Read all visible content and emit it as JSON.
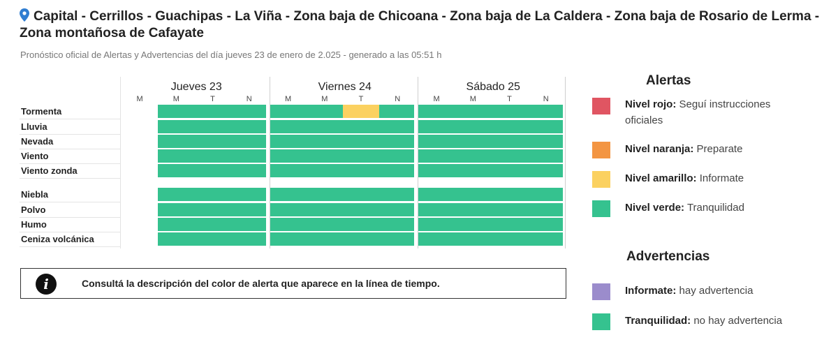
{
  "header": {
    "title": "Capital - Cerrillos - Guachipas - La Viña - Zona baja de Chicoana - Zona baja de La Caldera - Zona baja de Rosario de Lerma - Zona montañosa de Cafayate",
    "subtitle": "Pronóstico oficial de Alertas y Advertencias del día jueves 23 de enero de 2.025 - generado a las 05:51 h"
  },
  "timeline": {
    "days": [
      {
        "label": "Jueves 23",
        "slots": [
          "M",
          "M",
          "T",
          "N"
        ]
      },
      {
        "label": "Viernes 24",
        "slots": [
          "M",
          "M",
          "T",
          "N"
        ]
      },
      {
        "label": "Sábado 25",
        "slots": [
          "M",
          "M",
          "T",
          "N"
        ]
      }
    ],
    "alert_rows": [
      {
        "label": "Tormenta",
        "levels": [
          "none",
          "verde",
          "verde",
          "verde",
          "verde",
          "verde",
          "amarillo",
          "verde",
          "verde",
          "verde",
          "verde",
          "verde"
        ]
      },
      {
        "label": "Lluvia",
        "levels": [
          "none",
          "verde",
          "verde",
          "verde",
          "verde",
          "verde",
          "verde",
          "verde",
          "verde",
          "verde",
          "verde",
          "verde"
        ]
      },
      {
        "label": "Nevada",
        "levels": [
          "none",
          "verde",
          "verde",
          "verde",
          "verde",
          "verde",
          "verde",
          "verde",
          "verde",
          "verde",
          "verde",
          "verde"
        ]
      },
      {
        "label": "Viento",
        "levels": [
          "none",
          "verde",
          "verde",
          "verde",
          "verde",
          "verde",
          "verde",
          "verde",
          "verde",
          "verde",
          "verde",
          "verde"
        ]
      },
      {
        "label": "Viento zonda",
        "levels": [
          "none",
          "verde",
          "verde",
          "verde",
          "verde",
          "verde",
          "verde",
          "verde",
          "verde",
          "verde",
          "verde",
          "verde"
        ]
      }
    ],
    "warning_rows": [
      {
        "label": "Niebla",
        "levels": [
          "none",
          "verde",
          "verde",
          "verde",
          "verde",
          "verde",
          "verde",
          "verde",
          "verde",
          "verde",
          "verde",
          "verde"
        ]
      },
      {
        "label": "Polvo",
        "levels": [
          "none",
          "verde",
          "verde",
          "verde",
          "verde",
          "verde",
          "verde",
          "verde",
          "verde",
          "verde",
          "verde",
          "verde"
        ]
      },
      {
        "label": "Humo",
        "levels": [
          "none",
          "verde",
          "verde",
          "verde",
          "verde",
          "verde",
          "verde",
          "verde",
          "verde",
          "verde",
          "verde",
          "verde"
        ]
      },
      {
        "label": "Ceniza volcánica",
        "levels": [
          "none",
          "verde",
          "verde",
          "verde",
          "verde",
          "verde",
          "verde",
          "verde",
          "verde",
          "verde",
          "verde",
          "verde"
        ]
      }
    ]
  },
  "notice": {
    "icon": "info-icon",
    "text": "Consultá la descripción del color de alerta que aparece en la línea de tiempo."
  },
  "legend": {
    "alerts_title": "Alertas",
    "alerts": [
      {
        "name": "Nivel rojo:",
        "desc": "Seguí instrucciones oficiales",
        "color": "#e05562"
      },
      {
        "name": "Nivel naranja:",
        "desc": "Preparate",
        "color": "#f39542"
      },
      {
        "name": "Nivel amarillo:",
        "desc": "Informate",
        "color": "#fbd160"
      },
      {
        "name": "Nivel verde:",
        "desc": "Tranquilidad",
        "color": "#35c28f"
      }
    ],
    "warnings_title": "Advertencias",
    "warnings": [
      {
        "name": "Informate:",
        "desc": "hay advertencia",
        "color": "#9b8ccc"
      },
      {
        "name": "Tranquilidad:",
        "desc": "no hay advertencia",
        "color": "#35c28f"
      }
    ]
  },
  "colors": {
    "verde": "#35c28f",
    "amarillo": "#fbd160",
    "rojo": "#e05562",
    "naranja": "#f39542",
    "pin": "#2f7dd1"
  }
}
